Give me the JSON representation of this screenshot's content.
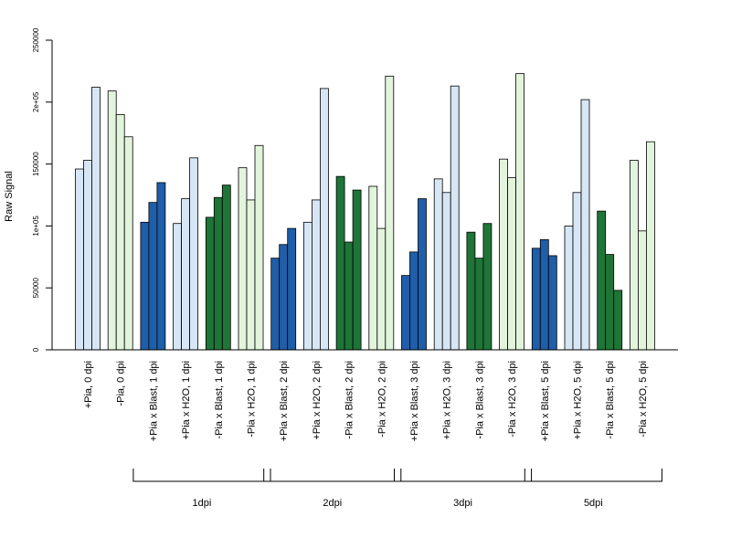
{
  "chart_data": {
    "type": "bar",
    "ylabel": "Raw Signal",
    "xlabel": "",
    "ylim": [
      0,
      250000
    ],
    "yticks": [
      0,
      50000,
      100000,
      150000,
      200000,
      250000
    ],
    "ytick_labels": [
      "0",
      "50000",
      "1e+05",
      "150000",
      "2e+05",
      "250000"
    ],
    "grid": false,
    "legend": "none",
    "groups": [
      {
        "label": "+Pia, 0 dpi",
        "color": "#d6e6f5",
        "values": [
          146000,
          153000,
          212000
        ]
      },
      {
        "label": "-Pia, 0 dpi",
        "color": "#e2f4dc",
        "values": [
          209000,
          190000,
          172000
        ]
      },
      {
        "label": "+Pia x Blast, 1 dpi",
        "color": "#1f5ea8",
        "values": [
          103000,
          119000,
          135000
        ]
      },
      {
        "label": "+Pia x H2O, 1 dpi",
        "color": "#d6e6f5",
        "values": [
          102000,
          122000,
          155000
        ]
      },
      {
        "label": "-Pia x Blast, 1 dpi",
        "color": "#1e7537",
        "values": [
          107000,
          123000,
          133000
        ]
      },
      {
        "label": "-Pia x H2O, 1 dpi",
        "color": "#e2f4dc",
        "values": [
          147000,
          121000,
          165000
        ]
      },
      {
        "label": "+Pia x Blast, 2 dpi",
        "color": "#1f5ea8",
        "values": [
          74000,
          85000,
          98000
        ]
      },
      {
        "label": "+Pia x H2O, 2 dpi",
        "color": "#d6e6f5",
        "values": [
          103000,
          121000,
          211000
        ]
      },
      {
        "label": "-Pia x Blast, 2 dpi",
        "color": "#1e7537",
        "values": [
          140000,
          87000,
          129000
        ]
      },
      {
        "label": "-Pia x H2O, 2 dpi",
        "color": "#e2f4dc",
        "values": [
          132000,
          98000,
          221000
        ]
      },
      {
        "label": "+Pia x Blast, 3 dpi",
        "color": "#1f5ea8",
        "values": [
          60000,
          79000,
          122000
        ]
      },
      {
        "label": "+Pia x H2O, 3 dpi",
        "color": "#d6e6f5",
        "values": [
          138000,
          127000,
          213000
        ]
      },
      {
        "label": "-Pia x Blast, 3 dpi",
        "color": "#1e7537",
        "values": [
          95000,
          74000,
          102000
        ]
      },
      {
        "label": "-Pia x H2O, 3 dpi",
        "color": "#e2f4dc",
        "values": [
          154000,
          139000,
          223000
        ]
      },
      {
        "label": "+Pia x Blast, 5 dpi",
        "color": "#1f5ea8",
        "values": [
          82000,
          89000,
          76000
        ]
      },
      {
        "label": "+Pia x H2O, 5 dpi",
        "color": "#d6e6f5",
        "values": [
          100000,
          127000,
          202000
        ]
      },
      {
        "label": "-Pia x Blast, 5 dpi",
        "color": "#1e7537",
        "values": [
          112000,
          77000,
          48000
        ]
      },
      {
        "label": "-Pia x H2O, 5 dpi",
        "color": "#e2f4dc",
        "values": [
          153000,
          96000,
          168000
        ]
      }
    ],
    "brackets": [
      {
        "label": "1dpi",
        "from_group": 2,
        "to_group": 5
      },
      {
        "label": "2dpi",
        "from_group": 6,
        "to_group": 9
      },
      {
        "label": "3dpi",
        "from_group": 10,
        "to_group": 13
      },
      {
        "label": "5dpi",
        "from_group": 14,
        "to_group": 17
      }
    ]
  }
}
